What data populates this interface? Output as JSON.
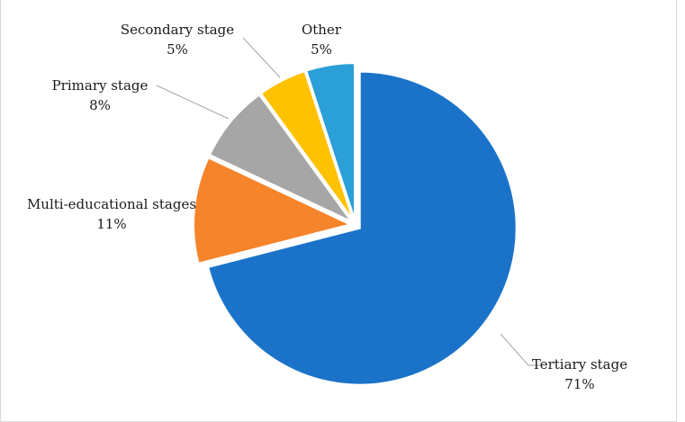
{
  "chart_data": {
    "type": "pie",
    "title": "",
    "categories": [
      "Tertiary stage",
      "Multi-educational stages",
      "Primary stage",
      "Secondary stage",
      "Other"
    ],
    "values": [
      71,
      11,
      8,
      5,
      5
    ],
    "percent_labels": [
      "71%",
      "11%",
      "8%",
      "5%",
      "5%"
    ],
    "colors": [
      "#1a73c8",
      "#f6842a",
      "#a6a6a6",
      "#fec200",
      "#2a9fd8"
    ],
    "exploded": true,
    "start_angle": "12 o'clock, clockwise",
    "legend": "none (labels outside slices)"
  }
}
